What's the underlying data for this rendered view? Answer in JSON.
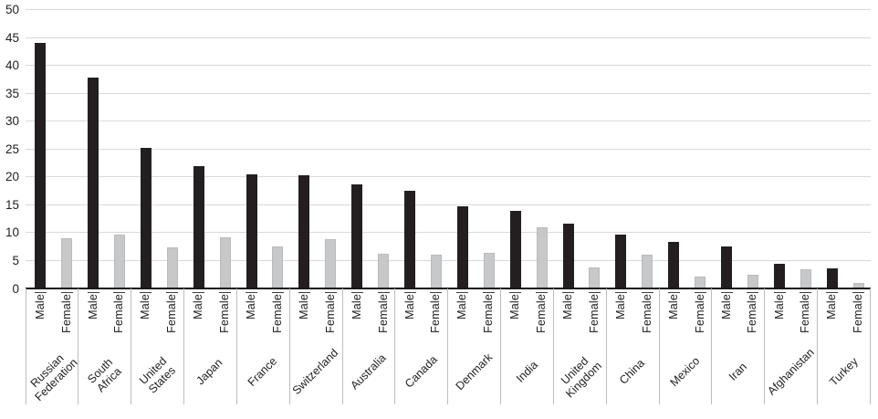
{
  "chart_data": {
    "type": "bar",
    "title": "",
    "xlabel": "",
    "ylabel": "",
    "legend": "none",
    "grid": true,
    "ylim": [
      0,
      50
    ],
    "ytick_step": 5,
    "yticks": [
      0,
      5,
      10,
      15,
      20,
      25,
      30,
      35,
      40,
      45,
      50
    ],
    "categories": [
      "Russian Federation",
      "South Africa",
      "United States",
      "Japan",
      "France",
      "Switzerland",
      "Australia",
      "Canada",
      "Denmark",
      "India",
      "United Kingdom",
      "China",
      "Mexico",
      "Iran",
      "Afghanistan",
      "Turkey"
    ],
    "category_display_lines": [
      [
        "Russian",
        "Federation"
      ],
      [
        "South",
        "Africa"
      ],
      [
        "United",
        "States"
      ],
      [
        "Japan"
      ],
      [
        "France"
      ],
      [
        "Switzerland"
      ],
      [
        "Australia"
      ],
      [
        "Canada"
      ],
      [
        "Denmark"
      ],
      [
        "India"
      ],
      [
        "United",
        "Kingdom"
      ],
      [
        "China"
      ],
      [
        "Mexico"
      ],
      [
        "Iran"
      ],
      [
        "Afghanistan"
      ],
      [
        "Turkey"
      ]
    ],
    "bar_sub_labels": [
      "Male",
      "Female"
    ],
    "series": [
      {
        "name": "Male",
        "color": "#231f20",
        "values": [
          44.0,
          37.8,
          25.2,
          21.9,
          20.4,
          20.3,
          18.7,
          17.6,
          14.8,
          14.0,
          11.7,
          9.7,
          8.4,
          7.5,
          4.4,
          3.6
        ]
      },
      {
        "name": "Female",
        "color": "#c7c8ca",
        "values": [
          9.0,
          9.7,
          7.4,
          9.1,
          7.5,
          8.8,
          6.3,
          6.0,
          6.4,
          11.0,
          3.8,
          6.0,
          2.1,
          2.5,
          3.4,
          1.0
        ]
      }
    ]
  },
  "colors": {
    "male_bar": "#231f20",
    "female_bar": "#c7c8ca",
    "gridline": "#d9d9d9",
    "axis_line": "#161616",
    "separator": "#bdbdbd",
    "tick_dash": "#3d3d3d",
    "text": "#1f1f1f",
    "background": "#ffffff"
  }
}
